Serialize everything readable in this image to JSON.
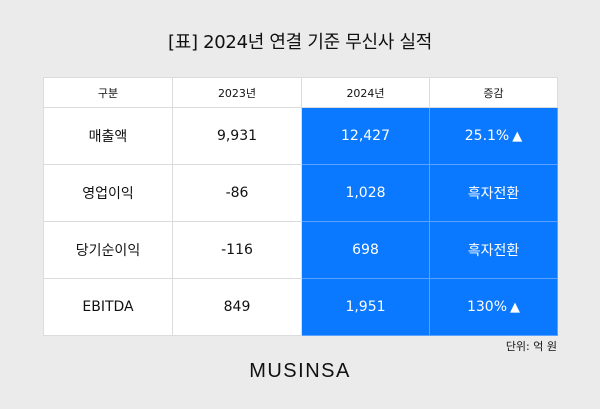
{
  "title": "[표] 2024년 연결 기준 무신사 실적",
  "table": {
    "headers": [
      "구분",
      "2023년",
      "2024년",
      "증감"
    ],
    "rows": [
      {
        "label": "매출액",
        "y2023": "9,931",
        "y2024": "12,427",
        "change": "25.1%",
        "change_icon": "▲"
      },
      {
        "label": "영업이익",
        "y2023": "-86",
        "y2024": "1,028",
        "change": "흑자전환",
        "change_icon": ""
      },
      {
        "label": "당기순이익",
        "y2023": "-116",
        "y2024": "698",
        "change": "흑자전환",
        "change_icon": ""
      },
      {
        "label": "EBITDA",
        "y2023": "849",
        "y2024": "1,951",
        "change": "130%",
        "change_icon": "▲"
      }
    ]
  },
  "unit": "단위: 억 원",
  "logo": "MUSINSA",
  "colors": {
    "background": "#ebebeb",
    "highlight": "#0a78ff",
    "text": "#111111"
  }
}
